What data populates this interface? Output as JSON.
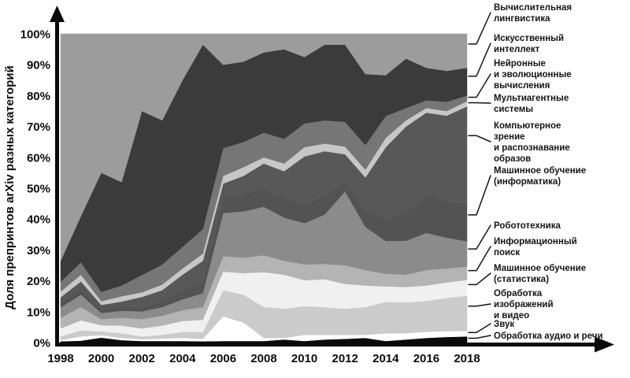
{
  "chart_data": {
    "type": "area",
    "stacked": true,
    "normalized": true,
    "title": "",
    "xlabel": "",
    "ylabel": "Доля препринтов arXiv разных категорий",
    "ylim": [
      0,
      100
    ],
    "grid": false,
    "legend_position": "right",
    "y_tick_labels": [
      "0%",
      "10%",
      "20%",
      "30%",
      "40%",
      "50%",
      "60%",
      "70%",
      "80%",
      "90%",
      "100%"
    ],
    "x_tick_labels": [
      "1998",
      "2000",
      "2002",
      "2004",
      "2006",
      "2008",
      "2010",
      "2012",
      "2014",
      "2016",
      "2018"
    ],
    "x": [
      1998,
      1999,
      2000,
      2001,
      2002,
      2003,
      2004,
      2005,
      2006,
      2007,
      2008,
      2009,
      2010,
      2011,
      2012,
      2013,
      2014,
      2015,
      2016,
      2017,
      2018
    ],
    "series_order": "bottom_to_top",
    "series": [
      {
        "id": "audio-speech",
        "name": "Обработка аудио и речи",
        "label_lines": [
          "Обработка аудио и речи"
        ],
        "color": "#0b0b0b",
        "values": [
          0.4,
          0.6,
          1.6,
          0.8,
          0.5,
          0.5,
          0.5,
          0.4,
          0.5,
          0.5,
          0.5,
          1.0,
          0.5,
          1.0,
          1.2,
          1.5,
          0.5,
          1.0,
          1.5,
          1.8,
          2.0
        ]
      },
      {
        "id": "sound",
        "name": "Звук",
        "label_lines": [
          "Звук"
        ],
        "color": "#ffffff",
        "values": [
          0.4,
          1.4,
          0.8,
          0.7,
          0.6,
          0.8,
          1.0,
          0.8,
          8.0,
          6.0,
          1.0,
          0.5,
          2.0,
          1.5,
          1.3,
          1.0,
          2.5,
          2.0,
          2.0,
          1.9,
          1.8
        ]
      },
      {
        "id": "image-video",
        "name": "Обработка изображений и видео",
        "label_lines": [
          "Обработка",
          "изображений",
          "и видео"
        ],
        "color": "#cbcbcb",
        "values": [
          1.2,
          2.0,
          1.2,
          1.5,
          0.9,
          1.2,
          2.0,
          2.2,
          8.5,
          9.0,
          10.0,
          9.5,
          9.3,
          9.0,
          8.5,
          9.0,
          10.2,
          10.0,
          10.0,
          10.8,
          11.4
        ]
      },
      {
        "id": "ml-stat",
        "name": "Машинное обучение (статистика)",
        "label_lines": [
          "Машинное обучение",
          "(статистика)"
        ],
        "color": "#f0f0f0",
        "values": [
          2.6,
          3.2,
          2.0,
          2.5,
          2.6,
          3.0,
          3.5,
          4.0,
          6.0,
          7.0,
          11.3,
          11.0,
          8.4,
          9.0,
          8.0,
          7.0,
          5.0,
          5.0,
          5.0,
          5.0,
          5.1
        ]
      },
      {
        "id": "info-retrieval",
        "name": "Информационный поиск",
        "label_lines": [
          "Информационный",
          "поиск"
        ],
        "color": "#b4b4b4",
        "values": [
          3.5,
          4.3,
          2.0,
          2.5,
          3.0,
          3.2,
          3.5,
          4.1,
          5.0,
          5.0,
          5.5,
          4.5,
          5.1,
          5.0,
          6.0,
          5.0,
          4.1,
          4.0,
          5.0,
          4.5,
          4.3
        ]
      },
      {
        "id": "robotics",
        "name": "Робототехника",
        "label_lines": [
          "Робототехника"
        ],
        "color": "#8b8b8b",
        "values": [
          3.3,
          4.0,
          2.0,
          2.3,
          2.5,
          2.8,
          3.5,
          4.5,
          14.0,
          15.0,
          15.7,
          14.0,
          13.4,
          16.0,
          24.0,
          14.0,
          10.6,
          11.0,
          12.0,
          10.0,
          8.2
        ]
      },
      {
        "id": "ml-cs",
        "name": "Машинное обучение (информатика)",
        "label_lines": [
          "Машинное обучение",
          "(информатика)"
        ],
        "color": "#535353",
        "values": [
          1.3,
          1.7,
          1.0,
          1.2,
          1.2,
          1.5,
          2.5,
          3.5,
          5.0,
          5.5,
          6.0,
          6.0,
          6.0,
          6.0,
          3.0,
          5.0,
          7.0,
          9.0,
          12.0,
          11.5,
          12.2
        ]
      },
      {
        "id": "cv",
        "name": "Компьютерное зрение и распознавание образов",
        "label_lines": [
          "Компьютерное",
          "зрение",
          "и распознавание",
          "образов"
        ],
        "color": "#585858",
        "values": [
          2.0,
          2.6,
          1.6,
          1.8,
          3.5,
          4.0,
          5.5,
          7.0,
          4.5,
          6.0,
          8.0,
          9.0,
          15.6,
          14.5,
          9.0,
          11.0,
          23.4,
          28.0,
          27.0,
          28.0,
          31.5
        ]
      },
      {
        "id": "multiagent",
        "name": "Мультиагентные системы",
        "label_lines": [
          "Мультиагентные",
          "системы"
        ],
        "color": "#c7c7c7",
        "values": [
          1.8,
          2.2,
          1.2,
          1.7,
          1.5,
          1.8,
          2.0,
          2.3,
          2.5,
          2.8,
          2.0,
          2.5,
          3.0,
          2.5,
          2.5,
          2.5,
          3.0,
          2.0,
          1.5,
          1.5,
          1.7
        ]
      },
      {
        "id": "neural-evo",
        "name": "Нейронные и эволюционные вычисления",
        "label_lines": [
          "Нейронные",
          "и эволюционные",
          "вычисления"
        ],
        "color": "#767676",
        "values": [
          3.2,
          4.0,
          3.0,
          3.5,
          5.6,
          6.5,
          7.0,
          8.0,
          9.0,
          8.2,
          8.0,
          8.0,
          7.7,
          7.5,
          8.0,
          8.0,
          7.1,
          4.0,
          2.5,
          3.0,
          1.8
        ]
      },
      {
        "id": "ai",
        "name": "Искусственный интеллект",
        "label_lines": [
          "Искусственный",
          "интеллект"
        ],
        "color": "#3b3b3b",
        "values": [
          6.8,
          15.0,
          38.6,
          33.5,
          53.1,
          46.7,
          54.0,
          59.7,
          27.0,
          26.0,
          26.0,
          29.0,
          21.5,
          24.5,
          25.0,
          23.0,
          13.2,
          16.0,
          10.5,
          10.0,
          9.0
        ]
      },
      {
        "id": "comp-ling",
        "name": "Вычислительная лингвистика",
        "label_lines": [
          "Вычислительная",
          "лингвистика"
        ],
        "color": "#9c9c9c",
        "values": [
          73.5,
          59.0,
          45.0,
          48.0,
          25.0,
          28.0,
          15.0,
          3.5,
          10.0,
          9.0,
          6.0,
          5.0,
          7.5,
          3.5,
          3.5,
          13.0,
          13.4,
          8.0,
          11.0,
          12.0,
          11.0
        ]
      }
    ]
  }
}
